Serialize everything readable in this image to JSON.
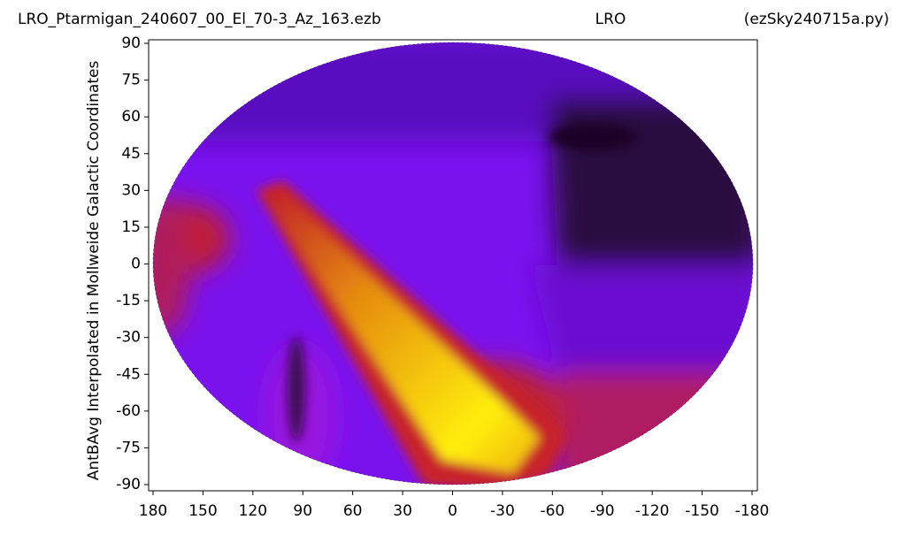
{
  "chart_data": {
    "type": "heatmap",
    "title": "LRO_Ptarmigan_240607_00_El_70-3_Az_163.ezb",
    "center_title": "LRO",
    "right_title": "(ezSky240715a.py)",
    "ylabel": "AntBAvg Interpolated in Mollweide Galactic Coordinates",
    "xlim": [
      180,
      -180
    ],
    "xticks": [
      180,
      150,
      120,
      90,
      60,
      30,
      0,
      -30,
      -60,
      -90,
      -120,
      -150,
      -180
    ],
    "ylim": [
      -90,
      90
    ],
    "yticks": [
      90,
      75,
      60,
      45,
      30,
      15,
      0,
      -15,
      -30,
      -45,
      -60,
      -75,
      -90
    ]
  }
}
